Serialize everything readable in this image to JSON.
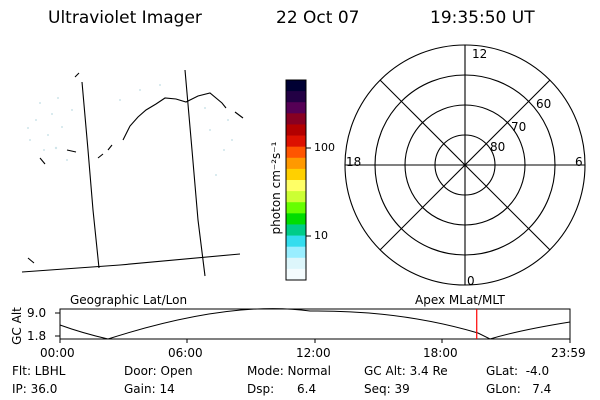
{
  "header": {
    "title": "Ultraviolet Imager",
    "date": "22 Oct 07",
    "time": "19:35:50 UT"
  },
  "colorbar": {
    "label": "photon cm⁻²s⁻¹",
    "ticks": [
      "100",
      "10"
    ],
    "colors": [
      "#000033",
      "#220044",
      "#550055",
      "#880022",
      "#b30000",
      "#dd1100",
      "#ff5500",
      "#ff9900",
      "#ffd000",
      "#ffff66",
      "#ccff33",
      "#66ff00",
      "#00dd00",
      "#00cc88",
      "#33ddee",
      "#99eeff",
      "#ddf6fb",
      "#f4fcfe"
    ]
  },
  "polar": {
    "labels": {
      "top": "12",
      "bottom": "0",
      "left": "18",
      "right": "6"
    },
    "rings": [
      "60",
      "70",
      "80"
    ]
  },
  "timeline": {
    "left_label": "Geographic Lat/Lon",
    "right_label": "Apex MLat/MLT",
    "y_axis_title": "GC Alt",
    "y_ticks": [
      "9.0",
      "1.8"
    ],
    "x_ticks": [
      "00:00",
      "06:00",
      "12:00",
      "18:00",
      "23:59"
    ],
    "marker_time": "19:35:50",
    "marker_color": "#ff0000"
  },
  "info": {
    "row1": {
      "filter": "Flt: LBHL",
      "door": "Door: Open",
      "mode": "Mode: Normal",
      "gcalt": "GC Alt: 3.4 Re",
      "glat": "GLat:  -4.0"
    },
    "row2": {
      "ip": "IP: 36.0",
      "gain": "Gain: 14",
      "dsp": "Dsp:      6.4",
      "seq": "Seq: 39",
      "glon": "GLon:   7.4"
    }
  }
}
